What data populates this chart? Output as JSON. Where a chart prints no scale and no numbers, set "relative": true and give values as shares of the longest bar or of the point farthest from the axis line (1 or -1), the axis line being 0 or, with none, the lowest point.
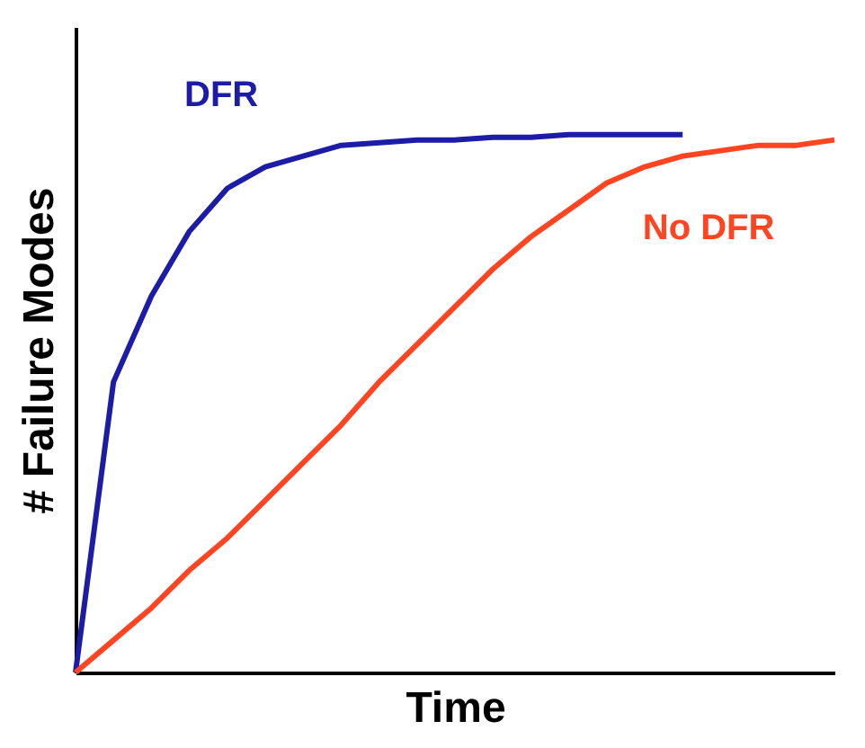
{
  "chart_data": {
    "type": "line",
    "relative": true,
    "xlabel": "Time",
    "ylabel": "# Failure Modes",
    "categories": [
      null,
      null,
      null,
      null,
      null,
      null,
      null,
      null,
      null,
      null,
      null,
      null,
      null,
      null,
      null,
      null,
      null,
      null,
      null,
      null,
      null
    ],
    "series": [
      {
        "name": "DFR",
        "color": "#1c1ca6",
        "values": [
          0,
          0.54,
          0.7,
          0.82,
          0.9,
          0.94,
          0.96,
          0.98,
          0.985,
          0.99,
          0.99,
          0.995,
          0.995,
          1,
          1,
          1,
          1,
          null,
          null,
          null,
          null
        ]
      },
      {
        "name": "No DFR",
        "color": "#ff4422",
        "values": [
          0,
          0.06,
          0.12,
          0.19,
          0.25,
          0.32,
          0.39,
          0.46,
          0.54,
          0.61,
          0.68,
          0.75,
          0.81,
          0.86,
          0.91,
          0.94,
          0.96,
          0.97,
          0.98,
          0.98,
          0.99
        ]
      }
    ]
  }
}
